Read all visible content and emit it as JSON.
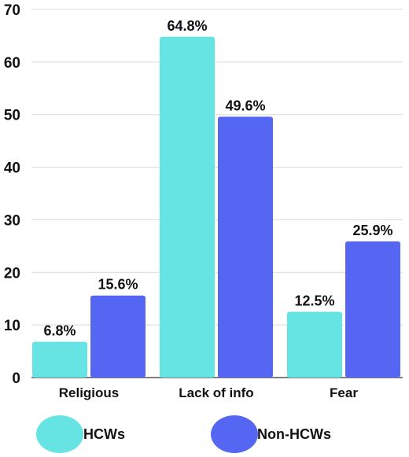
{
  "chart_data": {
    "type": "bar",
    "categories": [
      "Religious",
      "Lack of info",
      "Fear"
    ],
    "series": [
      {
        "name": "HCWs",
        "values": [
          6.8,
          64.8,
          12.5
        ],
        "labels": [
          "6.8%",
          "64.8%",
          "12.5%"
        ],
        "color": "#66e3e3"
      },
      {
        "name": "Non-HCWs",
        "values": [
          15.6,
          49.6,
          25.9
        ],
        "labels": [
          "15.6%",
          "49.6%",
          "25.9%"
        ],
        "color": "#5566f2"
      }
    ],
    "ylim": [
      0,
      70
    ],
    "yticks": [
      "0",
      "10",
      "20",
      "30",
      "40",
      "50",
      "60",
      "70"
    ],
    "grid": true,
    "legend_position": "bottom",
    "title": "",
    "xlabel": "",
    "ylabel": ""
  }
}
